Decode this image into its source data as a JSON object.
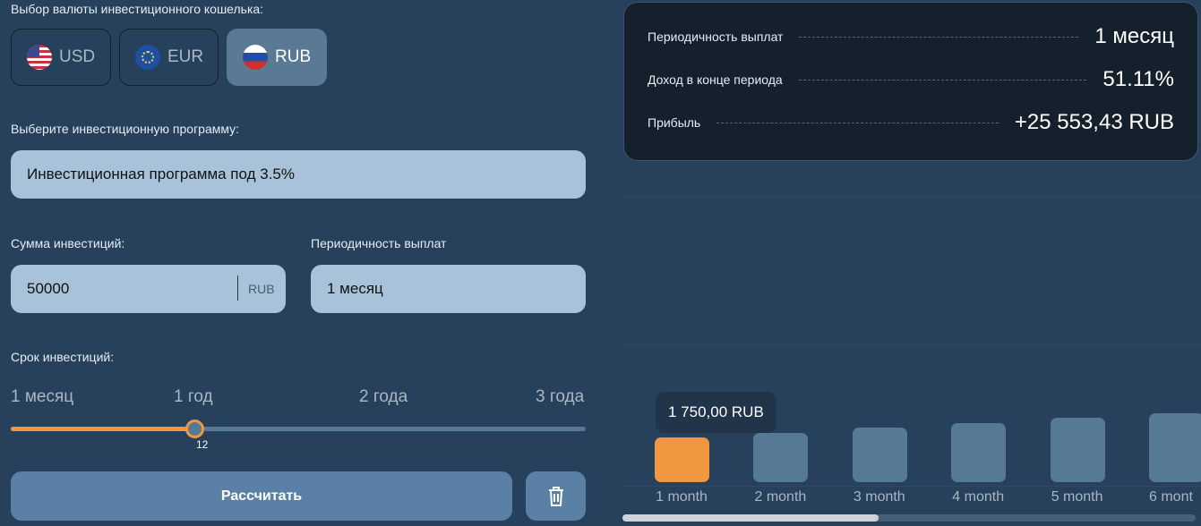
{
  "currency": {
    "label": "Выбор валюты инвестиционного кошелька:",
    "options": [
      {
        "code": "USD",
        "icon": "us-flag-icon"
      },
      {
        "code": "EUR",
        "icon": "eu-flag-icon"
      },
      {
        "code": "RUB",
        "icon": "ru-flag-icon",
        "selected": true
      }
    ]
  },
  "program": {
    "label": "Выберите инвестиционную программу:",
    "value": "Инвестиционная программа под 3.5%"
  },
  "amount": {
    "label": "Сумма инвестиций:",
    "value": "50000",
    "unit": "RUB"
  },
  "period": {
    "label": "Периодичность выплат",
    "value": "1 месяц"
  },
  "term": {
    "label": "Срок инвестиций:",
    "ticks": [
      "1 месяц",
      "1 год",
      "2 года",
      "3 года"
    ],
    "value": "12",
    "min": 1,
    "max": 36
  },
  "actions": {
    "calculate": "Рассчитать",
    "delete_icon": "trash-icon"
  },
  "summary": [
    {
      "label": "Периодичность выплат",
      "value": "1 месяц"
    },
    {
      "label": "Доход в конце периода",
      "value": "51.11%"
    },
    {
      "label": "Прибыль",
      "value": "+25 553,43 RUB"
    }
  ],
  "colors": {
    "accent": "#f0983f",
    "bar": "#567a96",
    "background": "#27405c"
  },
  "chart_data": {
    "type": "bar",
    "categories": [
      "1 month",
      "2 month",
      "3 month",
      "4 month",
      "5 month",
      "6 mont"
    ],
    "values": [
      1750,
      1925,
      2135,
      2310,
      2520,
      2695
    ],
    "tooltip": "1 750,00 RUB",
    "highlighted": 0
  }
}
